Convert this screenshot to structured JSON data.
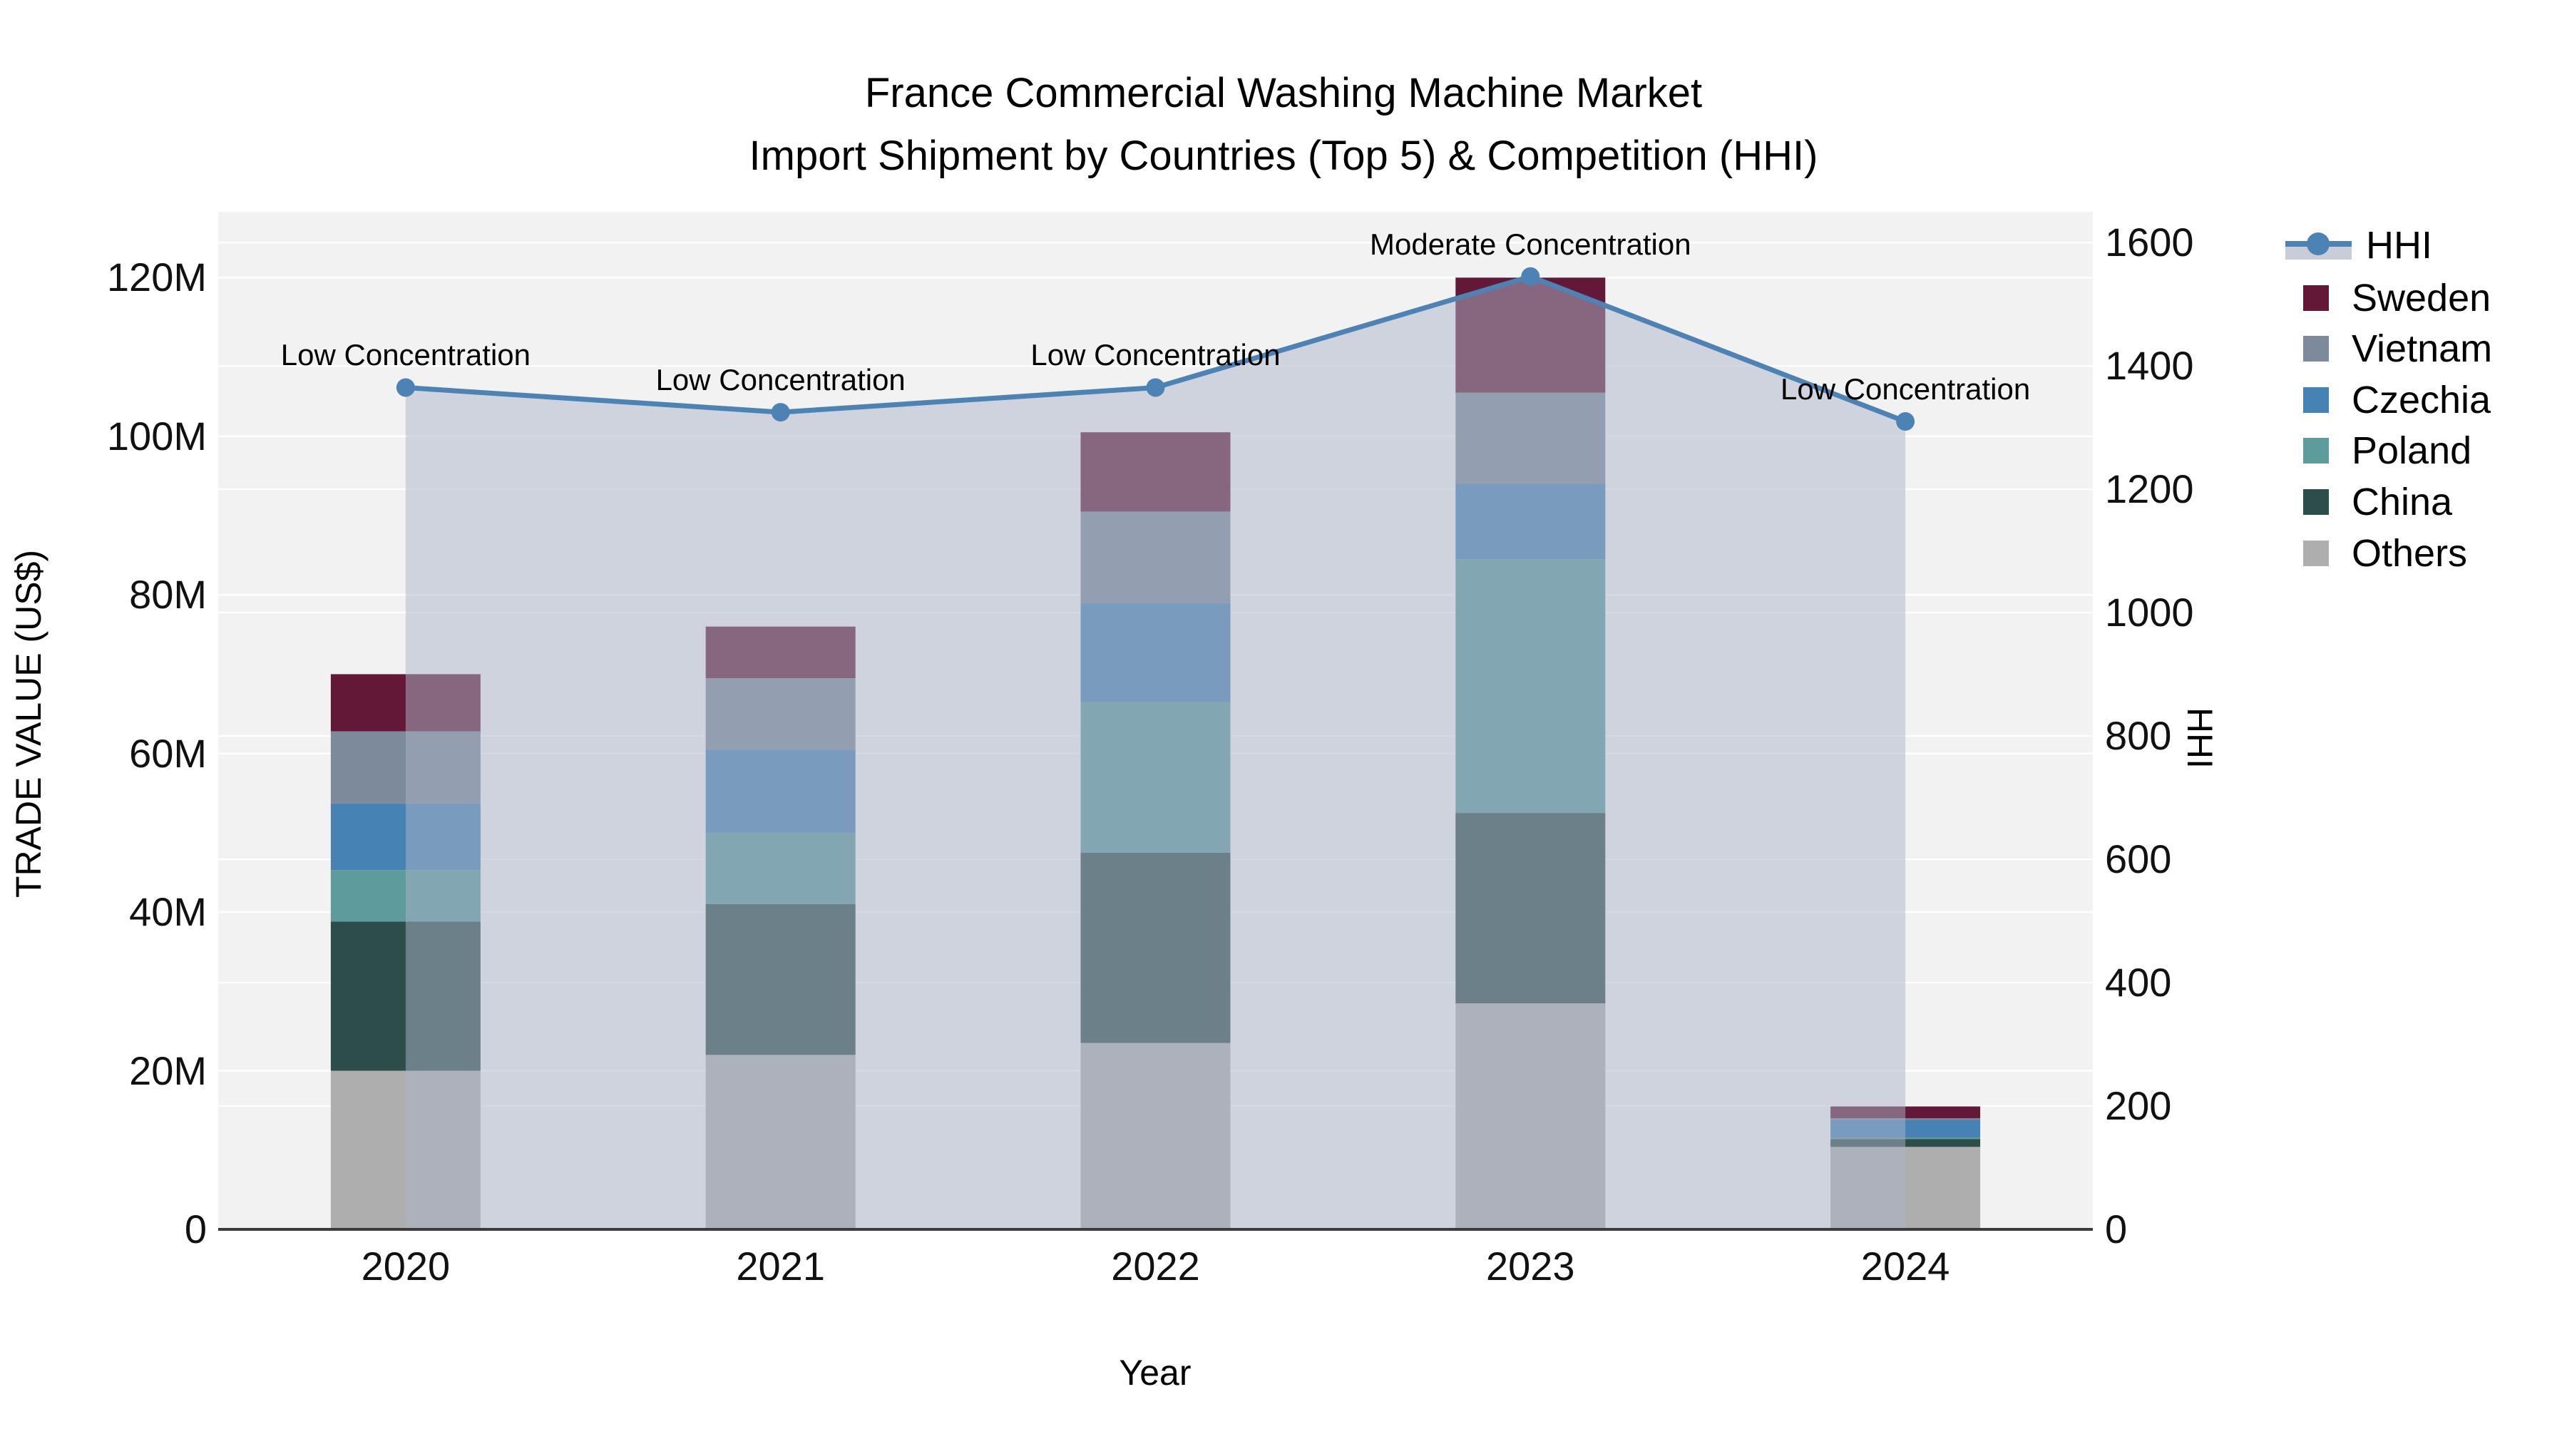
{
  "title": {
    "line1": "France Commercial Washing Machine Market",
    "line2": "Import Shipment by Countries (Top 5) & Competition (HHI)"
  },
  "axes": {
    "y_label": "TRADE VALUE (US$)",
    "x_label": "Year",
    "y2_label": "HHI",
    "y_ticks": [
      {
        "value": 0,
        "label": "0"
      },
      {
        "value": 20,
        "label": "20M"
      },
      {
        "value": 40,
        "label": "40M"
      },
      {
        "value": 60,
        "label": "60M"
      },
      {
        "value": 80,
        "label": "80M"
      },
      {
        "value": 100,
        "label": "100M"
      },
      {
        "value": 120,
        "label": "120M"
      }
    ],
    "y2_ticks": [
      {
        "value": 0,
        "label": "0"
      },
      {
        "value": 200,
        "label": "200"
      },
      {
        "value": 400,
        "label": "400"
      },
      {
        "value": 600,
        "label": "600"
      },
      {
        "value": 800,
        "label": "800"
      },
      {
        "value": 1000,
        "label": "1000"
      },
      {
        "value": 1200,
        "label": "1200"
      },
      {
        "value": 1400,
        "label": "1400"
      },
      {
        "value": 1600,
        "label": "1600"
      }
    ]
  },
  "legend_items": [
    "HHI",
    "Sweden",
    "Vietnam",
    "Czechia",
    "Poland",
    "China",
    "Others"
  ],
  "colors": {
    "plot_background": "#f2f2f2",
    "gridline": "#ffffff",
    "axis_line": "#3c3c3c",
    "hhi_line": "#4d83b4",
    "hhi_area_fill": "rgba(170,180,200,0.5)",
    "sweden": "#641838",
    "vietnam": "#7c8a9b",
    "czechia": "#4682b4",
    "poland": "#5d9b9d",
    "china": "#2d4d4b",
    "others": "#aeaeae"
  },
  "chart_data": [
    {
      "type": "bar",
      "stacked": true,
      "title": "France Commercial Washing Machine Market — Import Shipment by Countries (Top 5) & Competition (HHI)",
      "xlabel": "Year",
      "ylabel": "TRADE VALUE (US$)",
      "ylim": [
        0,
        128.3
      ],
      "unit": "M US$",
      "categories": [
        "2020",
        "2021",
        "2022",
        "2023",
        "2024"
      ],
      "series": [
        {
          "name": "Others",
          "color": "#aeaeae",
          "values": [
            20.0,
            22.0,
            23.5,
            28.5,
            10.4
          ]
        },
        {
          "name": "China",
          "color": "#2d4d4b",
          "values": [
            18.8,
            19.0,
            24.0,
            24.0,
            1.0
          ]
        },
        {
          "name": "Poland",
          "color": "#5d9b9d",
          "values": [
            6.5,
            9.0,
            19.0,
            32.0,
            0.2
          ]
        },
        {
          "name": "Czechia",
          "color": "#4682b4",
          "values": [
            8.4,
            10.5,
            12.5,
            9.5,
            2.2
          ]
        },
        {
          "name": "Vietnam",
          "color": "#7c8a9b",
          "values": [
            9.1,
            9.0,
            11.5,
            11.5,
            0.2
          ]
        },
        {
          "name": "Sweden",
          "color": "#641838",
          "values": [
            7.2,
            6.5,
            10.0,
            14.5,
            1.5
          ]
        }
      ],
      "totals": [
        70.0,
        76.0,
        100.5,
        120.0,
        15.5
      ]
    },
    {
      "type": "line",
      "name": "HHI",
      "color": "#4d83b4",
      "area_fill": "rgba(170,180,200,0.5)",
      "ylabel": "HHI",
      "ylim": [
        0,
        1650
      ],
      "x": [
        "2020",
        "2021",
        "2022",
        "2023",
        "2024"
      ],
      "values": [
        1365,
        1325,
        1365,
        1545,
        1310
      ],
      "annotations": [
        "Low Concentration",
        "Low Concentration",
        "Low Concentration",
        "Moderate Concentration",
        "Low Concentration"
      ],
      "legend_position": "right"
    }
  ]
}
